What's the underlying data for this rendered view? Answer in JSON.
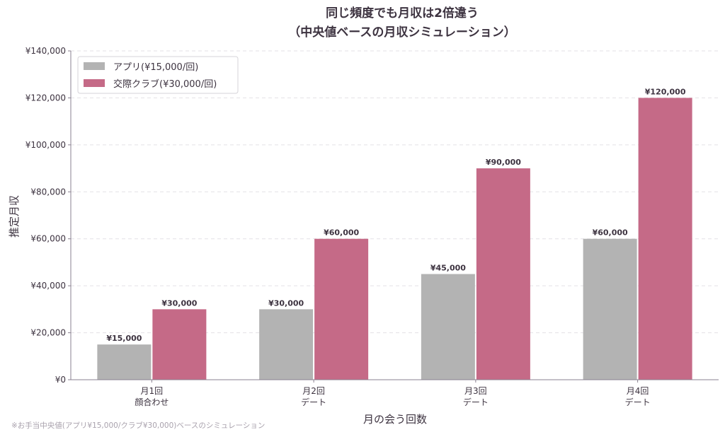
{
  "chart_data": {
    "type": "bar",
    "title": [
      "同じ頻度でも月収は2倍違う",
      "（中央値ベースの月収シミュレーション）"
    ],
    "xlabel": "月の会う回数",
    "ylabel": "推定月収",
    "categories": [
      [
        "月1回",
        "顔合わせ"
      ],
      [
        "月2回",
        "デート"
      ],
      [
        "月3回",
        "デート"
      ],
      [
        "月4回",
        "デート"
      ]
    ],
    "series": [
      {
        "name": "アプリ(¥15,000/回)",
        "color": "#b3b3b3",
        "values": [
          15000,
          30000,
          45000,
          60000
        ],
        "value_labels": [
          "¥15,000",
          "¥30,000",
          "¥45,000",
          "¥60,000"
        ]
      },
      {
        "name": "交際クラブ(¥30,000/回)",
        "color": "#c56a87",
        "values": [
          30000,
          60000,
          90000,
          120000
        ],
        "value_labels": [
          "¥30,000",
          "¥60,000",
          "¥90,000",
          "¥120,000"
        ]
      }
    ],
    "ylim": [
      0,
      140000
    ],
    "yticks": [
      0,
      20000,
      40000,
      60000,
      80000,
      100000,
      120000,
      140000
    ],
    "ytick_labels": [
      "¥0",
      "¥20,000",
      "¥40,000",
      "¥60,000",
      "¥80,000",
      "¥100,000",
      "¥120,000",
      "¥140,000"
    ],
    "grid": "horizontal-dashed",
    "legend_position": "top-left",
    "footnote": "※お手当中央値(アプリ¥15,000/クラブ¥30,000)ベースのシミュレーション"
  }
}
